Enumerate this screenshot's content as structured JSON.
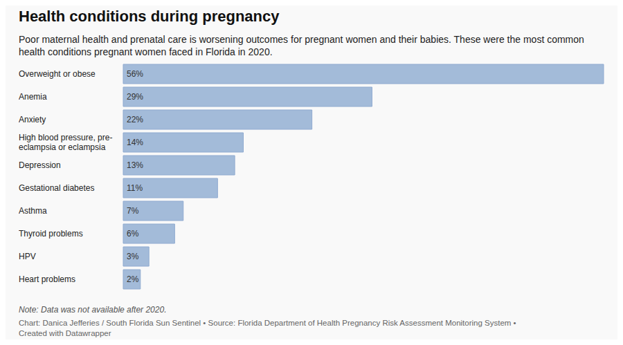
{
  "chart_data": {
    "type": "bar",
    "orientation": "horizontal",
    "title": "Health conditions during pregnancy",
    "subtitle": "Poor maternal health and prenatal care is worsening outcomes for pregnant women and their babies. These were the most common health conditions pregnant women faced in Florida in 2020.",
    "categories": [
      "Overweight or obese",
      "Anemia",
      "Anxiety",
      "High blood pressure, pre-eclampsia or eclampsia",
      "Depression",
      "Gestational diabetes",
      "Asthma",
      "Thyroid problems",
      "HPV",
      "Heart problems"
    ],
    "values": [
      56,
      29,
      22,
      14,
      13,
      11,
      7,
      6,
      3,
      2
    ],
    "value_labels": [
      "56%",
      "29%",
      "22%",
      "14%",
      "13%",
      "11%",
      "7%",
      "6%",
      "3%",
      "2%"
    ],
    "data_labels": true,
    "tick_labels": "y",
    "grid": false,
    "color": "#a3bbd9",
    "note": "Note: Data was not available after 2020.",
    "source": "Chart: Danica Jefferies / South Florida Sun Sentinel • Source: Florida Department of Health Pregnancy Risk Assessment Monitoring System • Created with Datawrapper"
  }
}
